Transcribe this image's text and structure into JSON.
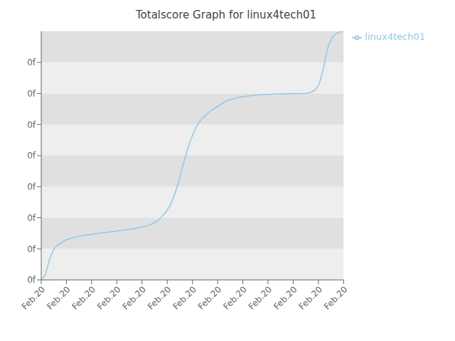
{
  "chart_data": {
    "type": "line",
    "title": "Totalscore Graph for linux4tech01",
    "x": [
      0,
      1,
      2,
      3,
      4,
      5,
      6,
      7,
      8,
      9,
      10,
      11,
      12,
      13,
      14,
      15,
      16,
      17,
      18,
      19,
      20,
      21,
      22,
      23,
      24,
      25,
      26,
      27,
      28,
      29,
      30,
      31,
      32,
      33,
      34,
      35,
      36,
      37,
      38,
      39,
      40,
      41,
      42,
      43,
      44,
      45,
      46,
      47,
      48,
      49,
      50,
      51,
      52,
      53,
      54,
      55,
      56,
      57,
      58,
      59,
      60,
      61,
      62,
      63,
      64,
      65,
      66,
      67,
      68,
      69,
      70,
      71,
      72,
      73,
      74,
      75
    ],
    "series": [
      {
        "name": "linux4tech01",
        "color": "#92C8E8",
        "values": [
          0,
          2,
          8,
          12,
          14,
          15,
          16,
          16.5,
          17,
          17.5,
          17.8,
          18,
          18.2,
          18.5,
          18.7,
          18.9,
          19.1,
          19.3,
          19.5,
          19.7,
          19.9,
          20.1,
          20.4,
          20.6,
          20.9,
          21.2,
          21.6,
          22.2,
          23.0,
          24.0,
          25.5,
          27.5,
          30.0,
          34.0,
          39.0,
          45.0,
          51.0,
          56.0,
          60.0,
          63.0,
          65.0,
          66.5,
          68.0,
          69.0,
          70.0,
          71.0,
          72.0,
          72.5,
          73.0,
          73.4,
          73.7,
          73.9,
          74.1,
          74.3,
          74.4,
          74.5,
          74.6,
          74.7,
          74.75,
          74.8,
          74.85,
          74.88,
          74.9,
          74.92,
          74.95,
          75.0,
          75.1,
          75.5,
          76.5,
          79.0,
          85.0,
          93.0,
          97.0,
          99.0,
          99.7,
          100.0
        ]
      }
    ],
    "xlim": [
      0,
      75
    ],
    "xticks": [
      {
        "value": 0,
        "label": "Feb.20"
      },
      {
        "value": 6.25,
        "label": "Feb.20"
      },
      {
        "value": 12.5,
        "label": "Feb.20"
      },
      {
        "value": 18.75,
        "label": "Feb.20"
      },
      {
        "value": 25,
        "label": "Feb.20"
      },
      {
        "value": 31.25,
        "label": "Feb.20"
      },
      {
        "value": 37.5,
        "label": "Feb.20"
      },
      {
        "value": 43.75,
        "label": "Feb.20"
      },
      {
        "value": 50,
        "label": "Feb.20"
      },
      {
        "value": 56.25,
        "label": "Feb.20"
      },
      {
        "value": 62.5,
        "label": "Feb.20"
      },
      {
        "value": 68.75,
        "label": "Feb.20"
      },
      {
        "value": 75,
        "label": "Feb.20"
      }
    ],
    "ylim": [
      0,
      100
    ],
    "yticks": [
      {
        "value": 0,
        "label": "0f"
      },
      {
        "value": 12.5,
        "label": "0f"
      },
      {
        "value": 25,
        "label": "0f"
      },
      {
        "value": 37.5,
        "label": "0f"
      },
      {
        "value": 50,
        "label": "0f"
      },
      {
        "value": 62.5,
        "label": "0f"
      },
      {
        "value": 75,
        "label": "0f"
      },
      {
        "value": 87.5,
        "label": "0f"
      }
    ],
    "grid": false,
    "legend": "right"
  }
}
